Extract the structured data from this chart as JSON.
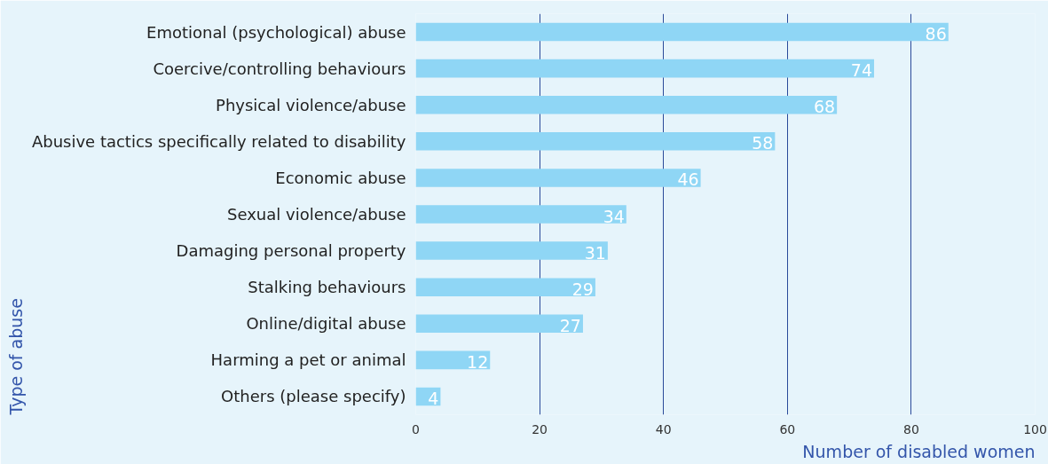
{
  "chart_data": {
    "type": "bar",
    "orientation": "horizontal",
    "xlabel": "Number of disabled women",
    "ylabel": "Type of abuse",
    "categories": [
      "Emotional (psychological) abuse",
      "Coercive/controlling behaviours",
      "Physical violence/abuse",
      "Abusive tactics specifically related to disability",
      "Economic abuse",
      "Sexual violence/abuse",
      "Damaging personal property",
      "Stalking behaviours",
      "Online/digital abuse",
      "Harming a pet or animal",
      "Others (please specify)"
    ],
    "values": [
      86,
      74,
      68,
      58,
      46,
      34,
      31,
      29,
      27,
      12,
      4
    ],
    "color": "#8fd6f5",
    "data_labels": true,
    "grid": "x",
    "xlim": [
      0,
      100
    ],
    "xticks": [
      0,
      20,
      40,
      60,
      80,
      100
    ]
  }
}
